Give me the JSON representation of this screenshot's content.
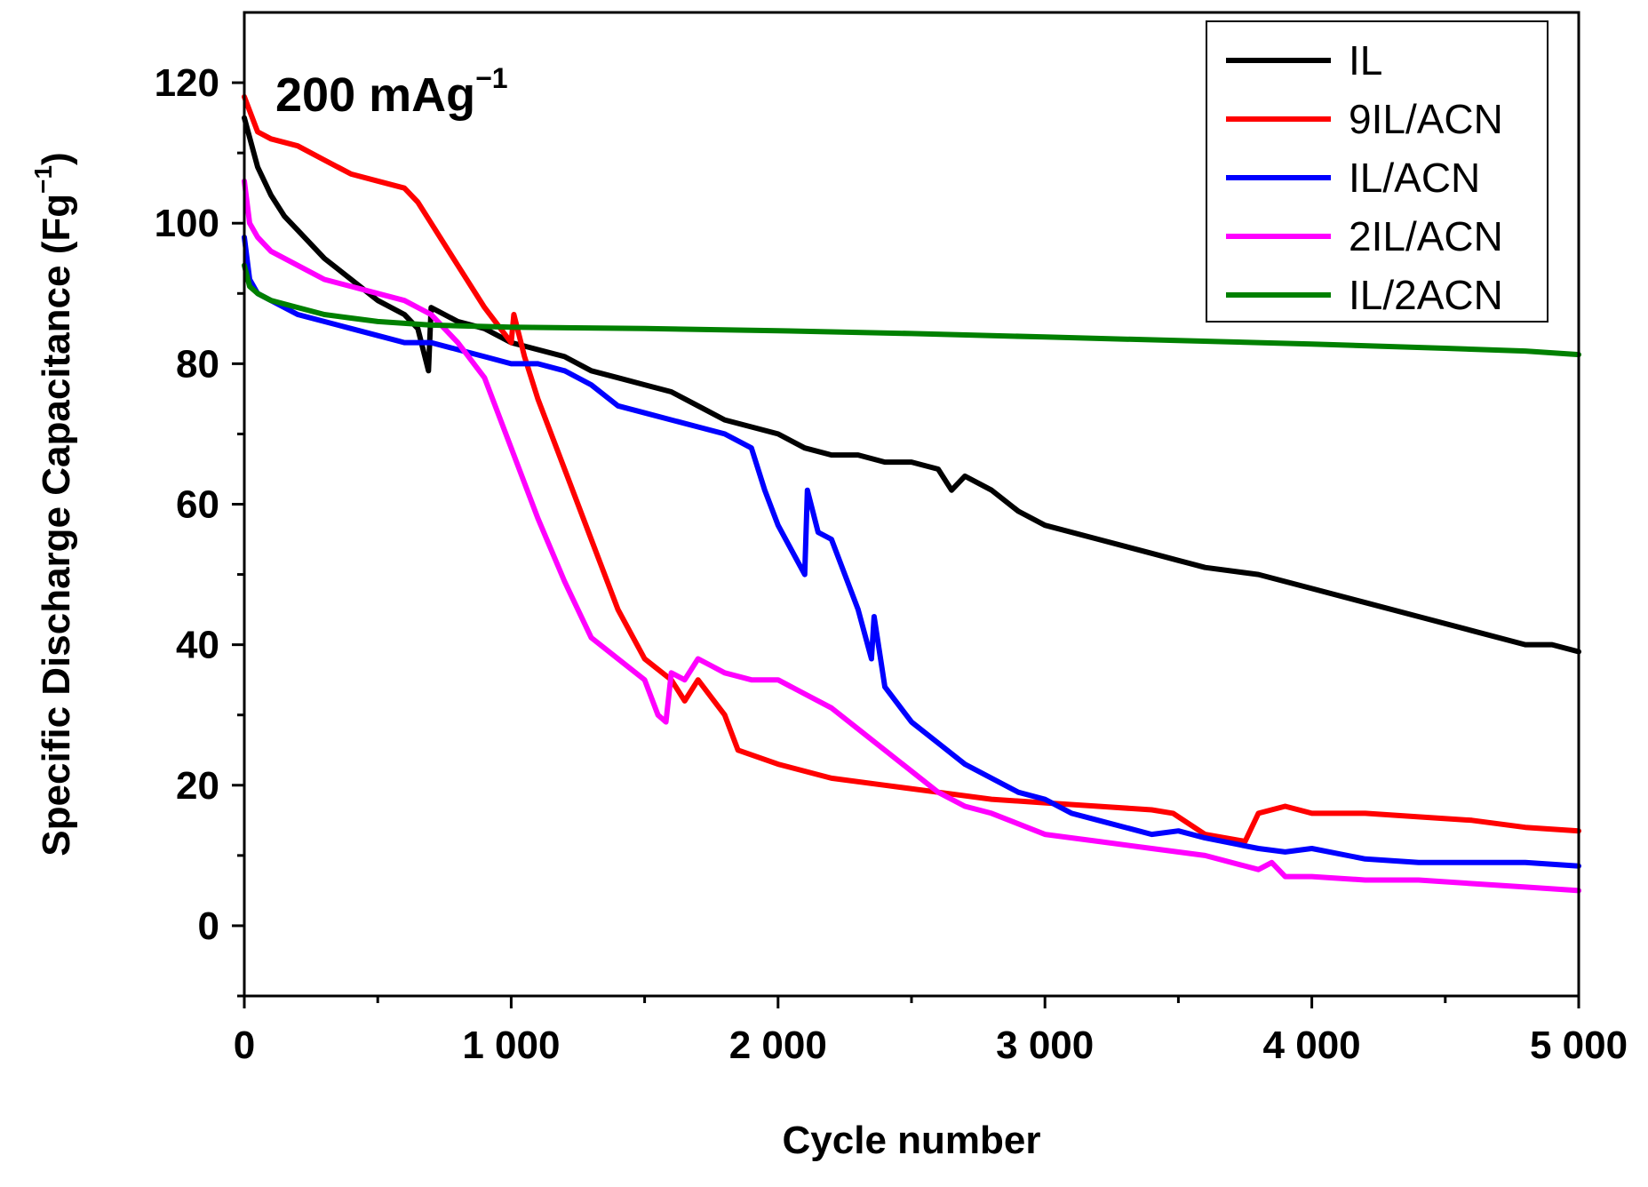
{
  "chart_data": {
    "type": "line",
    "title": "",
    "annotation": {
      "main": "200 mAg",
      "sup": "−1"
    },
    "xlabel": "Cycle number",
    "ylabel": {
      "main": "Specific Discharge Capacitance (Fg",
      "sup": "−1",
      "close": ")"
    },
    "xlim": [
      0,
      5000
    ],
    "ylim": [
      -10,
      130
    ],
    "x_ticks": [
      0,
      1000,
      2000,
      3000,
      4000,
      5000
    ],
    "x_tick_labels": [
      "0",
      "1 000",
      "2 000",
      "3 000",
      "4 000",
      "5 000"
    ],
    "y_ticks": [
      0,
      20,
      40,
      60,
      80,
      100,
      120
    ],
    "y_tick_labels": [
      "0",
      "20",
      "40",
      "60",
      "80",
      "100",
      "120"
    ],
    "grid": false,
    "legend_position": "top-right",
    "series": [
      {
        "name": "IL",
        "color": "#000000",
        "x": [
          0,
          50,
          100,
          150,
          200,
          250,
          300,
          400,
          500,
          600,
          650,
          690,
          700,
          800,
          900,
          1000,
          1100,
          1200,
          1300,
          1400,
          1500,
          1600,
          1700,
          1800,
          1900,
          2000,
          2100,
          2200,
          2300,
          2400,
          2500,
          2600,
          2650,
          2700,
          2800,
          2900,
          3000,
          3200,
          3400,
          3500,
          3600,
          3800,
          4000,
          4200,
          4400,
          4600,
          4800,
          4900,
          5000
        ],
        "values": [
          115,
          108,
          104,
          101,
          99,
          97,
          95,
          92,
          89,
          87,
          85,
          79,
          88,
          86,
          85,
          83,
          82,
          81,
          79,
          78,
          77,
          76,
          74,
          72,
          71,
          70,
          68,
          67,
          67,
          66,
          66,
          65,
          62,
          64,
          62,
          59,
          57,
          55,
          53,
          52,
          51,
          50,
          48,
          46,
          44,
          42,
          40,
          40,
          39
        ]
      },
      {
        "name": "9IL/ACN",
        "color": "#ff0000",
        "x": [
          0,
          50,
          100,
          200,
          300,
          400,
          500,
          600,
          650,
          700,
          800,
          900,
          1000,
          1010,
          1050,
          1100,
          1200,
          1300,
          1400,
          1500,
          1600,
          1650,
          1700,
          1800,
          1850,
          2000,
          2200,
          2400,
          2600,
          2800,
          3000,
          3200,
          3400,
          3480,
          3500,
          3600,
          3750,
          3800,
          3900,
          4000,
          4200,
          4400,
          4600,
          4800,
          5000
        ],
        "values": [
          118,
          113,
          112,
          111,
          109,
          107,
          106,
          105,
          103,
          100,
          94,
          88,
          83,
          87,
          81,
          75,
          65,
          55,
          45,
          38,
          35,
          32,
          35,
          30,
          25,
          23,
          21,
          20,
          19,
          18,
          17.5,
          17,
          16.5,
          16,
          15.5,
          13,
          12,
          16,
          17,
          16,
          16,
          15.5,
          15,
          14,
          13.5
        ]
      },
      {
        "name": "IL/ACN",
        "color": "#0000ff",
        "x": [
          0,
          20,
          50,
          100,
          200,
          300,
          400,
          500,
          600,
          700,
          800,
          900,
          1000,
          1100,
          1200,
          1300,
          1400,
          1500,
          1600,
          1700,
          1800,
          1900,
          1950,
          2000,
          2100,
          2110,
          2150,
          2200,
          2300,
          2350,
          2360,
          2400,
          2500,
          2600,
          2700,
          2800,
          2900,
          3000,
          3100,
          3200,
          3400,
          3500,
          3600,
          3800,
          3900,
          4000,
          4200,
          4400,
          4600,
          4800,
          5000
        ],
        "values": [
          98,
          92,
          90,
          89,
          87,
          86,
          85,
          84,
          83,
          83,
          82,
          81,
          80,
          80,
          79,
          77,
          74,
          73,
          72,
          71,
          70,
          68,
          62,
          57,
          50,
          62,
          56,
          55,
          45,
          38,
          44,
          34,
          29,
          26,
          23,
          21,
          19,
          18,
          16,
          15,
          13,
          13.5,
          12.5,
          11,
          10.5,
          11,
          9.5,
          9,
          9,
          9,
          8.5
        ]
      },
      {
        "name": "2IL/ACN",
        "color": "#ff00ff",
        "x": [
          0,
          20,
          50,
          100,
          200,
          300,
          400,
          500,
          600,
          700,
          800,
          900,
          1000,
          1100,
          1200,
          1300,
          1400,
          1500,
          1550,
          1580,
          1600,
          1650,
          1700,
          1750,
          1800,
          1900,
          2000,
          2100,
          2200,
          2300,
          2400,
          2500,
          2600,
          2700,
          2800,
          3000,
          3200,
          3400,
          3600,
          3800,
          3850,
          3900,
          4000,
          4200,
          4400,
          4600,
          4800,
          5000
        ],
        "values": [
          106,
          100,
          98,
          96,
          94,
          92,
          91,
          90,
          89,
          87,
          83,
          78,
          68,
          58,
          49,
          41,
          38,
          35,
          30,
          29,
          36,
          35,
          38,
          37,
          36,
          35,
          35,
          33,
          31,
          28,
          25,
          22,
          19,
          17,
          16,
          13,
          12,
          11,
          10,
          8,
          9,
          7,
          7,
          6.5,
          6.5,
          6,
          5.5,
          5
        ]
      },
      {
        "name": "IL/2ACN",
        "color": "#008000",
        "x": [
          0,
          20,
          50,
          100,
          200,
          300,
          400,
          500,
          700,
          1000,
          1500,
          2000,
          2500,
          3000,
          3500,
          4000,
          4500,
          4800,
          5000
        ],
        "values": [
          94,
          91,
          90,
          89,
          88,
          87,
          86.5,
          86,
          85.5,
          85.2,
          85,
          84.7,
          84.3,
          83.8,
          83.3,
          82.8,
          82.2,
          81.8,
          81.3
        ]
      }
    ]
  }
}
